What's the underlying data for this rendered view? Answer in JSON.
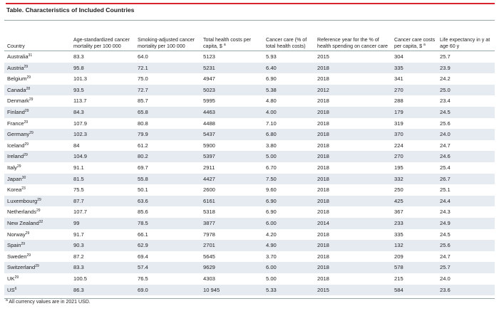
{
  "title": "Table. Characteristics of Included Countries",
  "table": {
    "headers": [
      {
        "text": "Country"
      },
      {
        "text": "Age-standardized cancer mortality per 100 000"
      },
      {
        "text": "Smoking-adjusted cancer mortality per 100 000"
      },
      {
        "text": "Total health costs per capita, $",
        "sup": "a"
      },
      {
        "text": "Cancer care (% of total health costs)"
      },
      {
        "text": "Reference year for the % of health spending on cancer care"
      },
      {
        "text": "Cancer care costs per capita, $",
        "sup": "a"
      },
      {
        "text": "Life expectancy in y at age 60 y"
      }
    ],
    "rows": [
      {
        "country": "Australia",
        "ref": "31",
        "values": [
          "83.3",
          "64.0",
          "5123",
          "5.93",
          "2015",
          "304",
          "25.7"
        ]
      },
      {
        "country": "Austria",
        "ref": "29",
        "values": [
          "95.8",
          "72.1",
          "5231",
          "6.40",
          "2018",
          "335",
          "23.9"
        ]
      },
      {
        "country": "Belgium",
        "ref": "29",
        "values": [
          "101.3",
          "75.0",
          "4947",
          "6.90",
          "2018",
          "341",
          "24.2"
        ]
      },
      {
        "country": "Canada",
        "ref": "28",
        "values": [
          "93.5",
          "72.7",
          "5023",
          "5.38",
          "2012",
          "270",
          "25.0"
        ]
      },
      {
        "country": "Denmark",
        "ref": "29",
        "values": [
          "113.7",
          "85.7",
          "5995",
          "4.80",
          "2018",
          "288",
          "23.4"
        ]
      },
      {
        "country": "Finland",
        "ref": "29",
        "values": [
          "84.3",
          "65.8",
          "4463",
          "4.00",
          "2018",
          "179",
          "24.5"
        ]
      },
      {
        "country": "France",
        "ref": "29",
        "values": [
          "107.9",
          "80.8",
          "4488",
          "7.10",
          "2018",
          "319",
          "25.6"
        ]
      },
      {
        "country": "Germany",
        "ref": "29",
        "values": [
          "102.3",
          "79.9",
          "5437",
          "6.80",
          "2018",
          "370",
          "24.0"
        ]
      },
      {
        "country": "Iceland",
        "ref": "29",
        "values": [
          "84",
          "61.2",
          "5900",
          "3.80",
          "2018",
          "224",
          "24.7"
        ]
      },
      {
        "country": "Ireland",
        "ref": "29",
        "values": [
          "104.9",
          "80.2",
          "5397",
          "5.00",
          "2018",
          "270",
          "24.6"
        ]
      },
      {
        "country": "Italy",
        "ref": "29",
        "values": [
          "91.1",
          "69.7",
          "2911",
          "6.70",
          "2018",
          "195",
          "25.4"
        ]
      },
      {
        "country": "Japan",
        "ref": "30",
        "values": [
          "81.5",
          "55.8",
          "4427",
          "7.50",
          "2018",
          "332",
          "26.7"
        ]
      },
      {
        "country": "Korea",
        "ref": "23",
        "values": [
          "75.5",
          "50.1",
          "2600",
          "9.60",
          "2018",
          "250",
          "25.1"
        ]
      },
      {
        "country": "Luxembourg",
        "ref": "29",
        "values": [
          "87.7",
          "63.6",
          "6161",
          "6.90",
          "2018",
          "425",
          "24.4"
        ]
      },
      {
        "country": "Netherlands",
        "ref": "29",
        "values": [
          "107.7",
          "85.6",
          "5318",
          "6.90",
          "2018",
          "367",
          "24.3"
        ]
      },
      {
        "country": "New Zealand",
        "ref": "32",
        "values": [
          "99",
          "78.5",
          "3877",
          "6.00",
          "2014",
          "233",
          "24.9"
        ]
      },
      {
        "country": "Norway",
        "ref": "29",
        "values": [
          "91.7",
          "66.1",
          "7978",
          "4.20",
          "2018",
          "335",
          "24.5"
        ]
      },
      {
        "country": "Spain",
        "ref": "29",
        "values": [
          "90.3",
          "62.9",
          "2701",
          "4.90",
          "2018",
          "132",
          "25.6"
        ]
      },
      {
        "country": "Sweden",
        "ref": "29",
        "values": [
          "87.2",
          "69.4",
          "5645",
          "3.70",
          "2018",
          "209",
          "24.7"
        ]
      },
      {
        "country": "Switzerland",
        "ref": "29",
        "values": [
          "83.3",
          "57.4",
          "9629",
          "6.00",
          "2018",
          "578",
          "25.7"
        ]
      },
      {
        "country": "UK",
        "ref": "29",
        "values": [
          "100.5",
          "76.5",
          "4303",
          "5.00",
          "2018",
          "215",
          "24.0"
        ]
      },
      {
        "country": "US",
        "ref": "6",
        "values": [
          "86.3",
          "69.0",
          "10 945",
          "5.33",
          "2015",
          "584",
          "23.6"
        ]
      }
    ]
  },
  "footnote": {
    "mark": "a",
    "text": "All currency values are in 2021 USD."
  }
}
